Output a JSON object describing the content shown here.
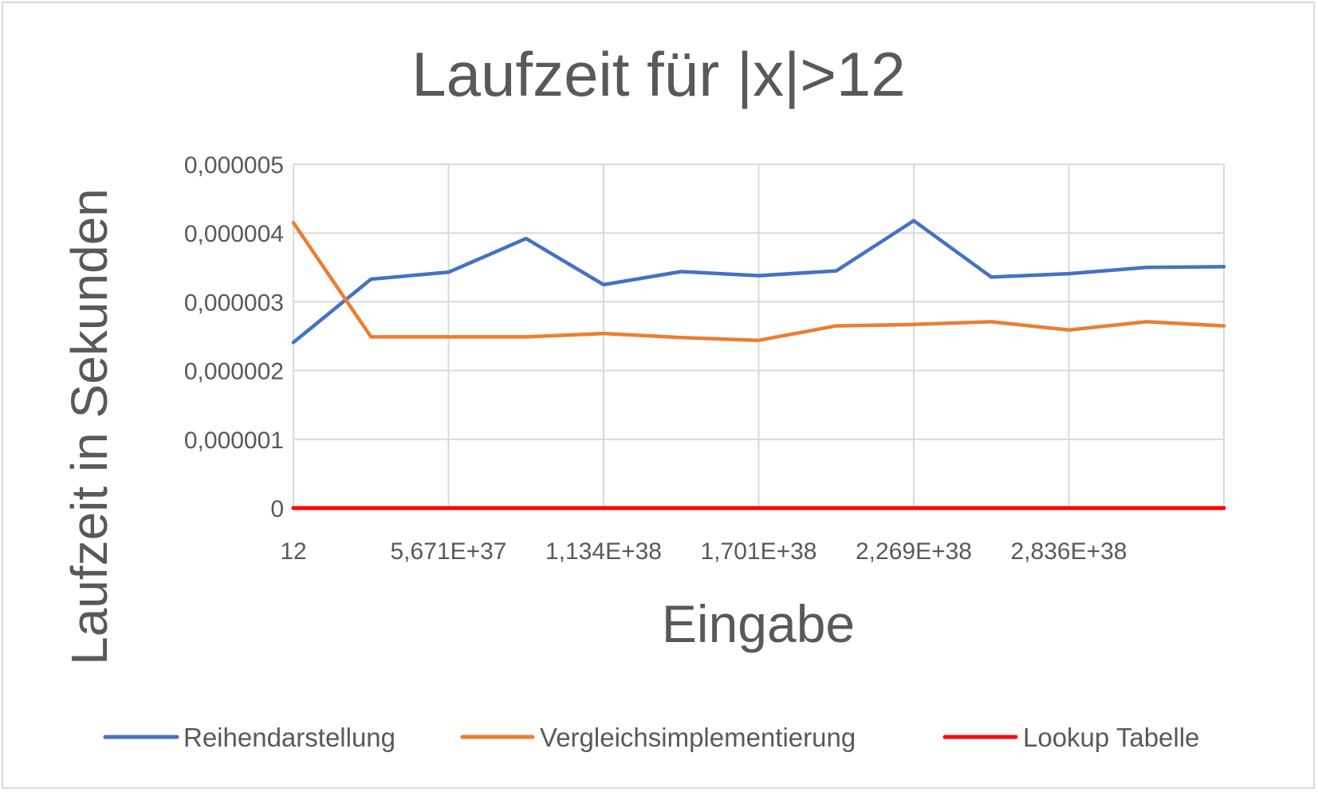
{
  "chart_data": {
    "type": "line",
    "title": "Laufzeit für |x|>12",
    "xlabel": "Eingabe",
    "ylabel": "Laufzeit in Sekunden",
    "y_ticks": [
      "0",
      "0,000001",
      "0,000002",
      "0,000003",
      "0,000004",
      "0,000005"
    ],
    "y_tick_values": [
      0,
      1e-06,
      2e-06,
      3e-06,
      4e-06,
      5e-06
    ],
    "x_tick_labels": [
      "12",
      "5,671E+37",
      "1,134E+38",
      "1,701E+38",
      "2,269E+38",
      "2,836E+38"
    ],
    "x_tick_positions": [
      0,
      2,
      4,
      6,
      8,
      10
    ],
    "ylim": [
      0,
      5e-06
    ],
    "grid": true,
    "legend_position": "bottom",
    "series": [
      {
        "name": "Reihendarstellung",
        "color": "#4472c4",
        "values": [
          2.41e-06,
          3.33e-06,
          3.43e-06,
          3.92e-06,
          3.25e-06,
          3.44e-06,
          3.38e-06,
          3.45e-06,
          4.18e-06,
          3.36e-06,
          3.41e-06,
          3.5e-06,
          3.51e-06
        ]
      },
      {
        "name": "Vergleichsimplementierung",
        "color": "#ed7d31",
        "values": [
          4.15e-06,
          2.49e-06,
          2.49e-06,
          2.49e-06,
          2.54e-06,
          2.48e-06,
          2.44e-06,
          2.65e-06,
          2.67e-06,
          2.71e-06,
          2.59e-06,
          2.71e-06,
          2.65e-06
        ]
      },
      {
        "name": "Lookup Tabelle",
        "color": "#ff0000",
        "values": [
          0,
          0,
          0,
          0,
          0,
          0,
          0,
          0,
          0,
          0,
          0,
          0,
          0
        ]
      }
    ]
  }
}
